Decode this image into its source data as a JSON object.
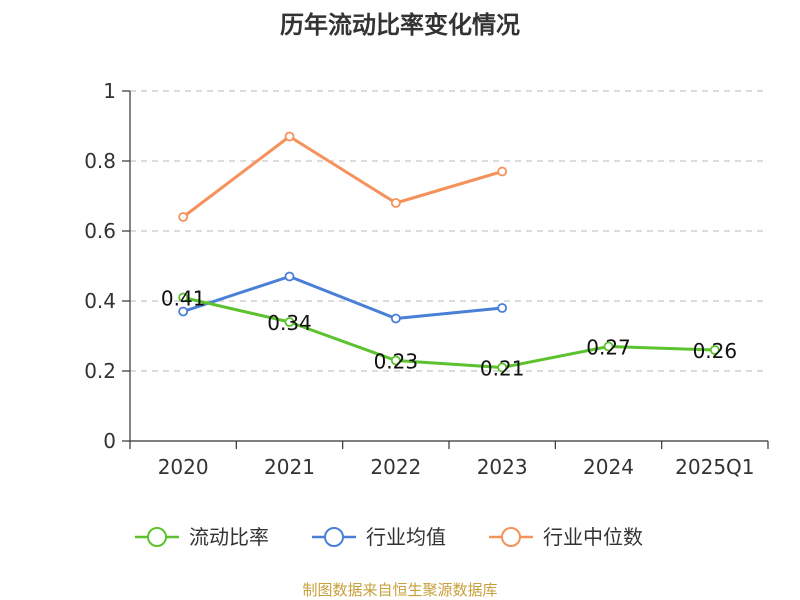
{
  "chart_data": {
    "type": "line",
    "title": "历年流动比率变化情况",
    "categories": [
      "2020",
      "2021",
      "2022",
      "2023",
      "2024",
      "2025Q1"
    ],
    "ylim": [
      0,
      1
    ],
    "yticks": [
      "0",
      "0.2",
      "0.4",
      "0.6",
      "0.8",
      "1"
    ],
    "ytick_values": [
      0,
      0.2,
      0.4,
      0.6,
      0.8,
      1
    ],
    "grid": true,
    "legend_position": "bottom",
    "series": [
      {
        "name": "流动比率",
        "color": "#5cc22e",
        "values": [
          0.41,
          0.34,
          0.23,
          0.21,
          0.27,
          0.26
        ],
        "labels": [
          "0.41",
          "0.34",
          "0.23",
          "0.21",
          "0.27",
          "0.26"
        ]
      },
      {
        "name": "行业均值",
        "color": "#4a7fd8",
        "values": [
          0.37,
          0.47,
          0.35,
          0.38,
          null,
          null
        ]
      },
      {
        "name": "行业中位数",
        "color": "#f5915a",
        "values": [
          0.64,
          0.87,
          0.68,
          0.77,
          null,
          null
        ]
      }
    ]
  },
  "footer": {
    "source": "制图数据来自恒生聚源数据库"
  }
}
